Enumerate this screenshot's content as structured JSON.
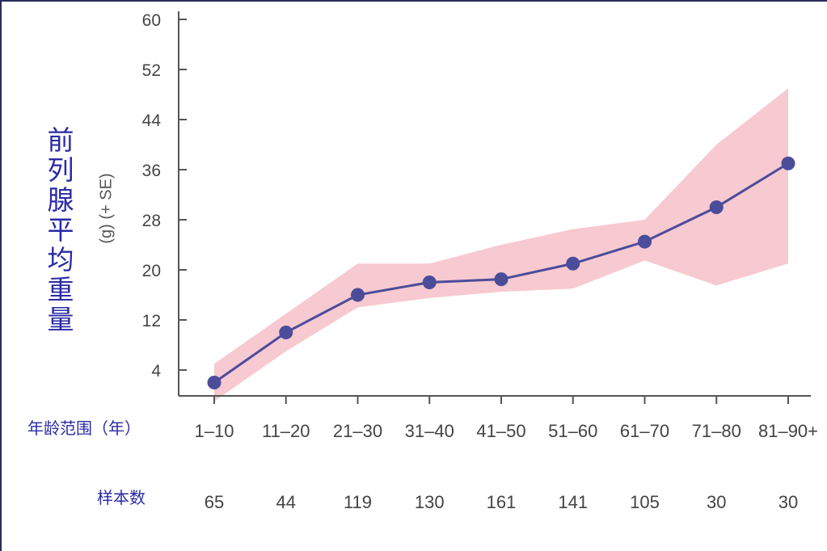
{
  "chart_data": {
    "type": "line",
    "ylabel": "前列腺平均重量",
    "ylabel_unit": "(g) (+ SE)",
    "xlabel": "年龄范围（年）",
    "sample_label": "样本数",
    "categories": [
      "1–10",
      "11–20",
      "21–30",
      "31–40",
      "41–50",
      "51–60",
      "61–70",
      "71–80",
      "81–90+"
    ],
    "sample_sizes": [
      "65",
      "44",
      "119",
      "130",
      "161",
      "141",
      "105",
      "30",
      "30"
    ],
    "series": [
      {
        "values": [
          2,
          10,
          16,
          18,
          18.5,
          21,
          24.5,
          30,
          37
        ]
      }
    ],
    "error_band": {
      "upper": [
        5,
        13,
        21,
        21,
        24,
        26.5,
        28,
        40,
        49
      ],
      "lower": [
        -1,
        7,
        14,
        15.5,
        16.5,
        17,
        21.5,
        17.5,
        21
      ]
    },
    "yticks": [
      4,
      12,
      20,
      28,
      36,
      44,
      52,
      60
    ],
    "ylim": [
      0,
      60
    ],
    "grid": false,
    "colors": {
      "line": "#4b4c9a",
      "marker": "#4b4c9a",
      "band": "#f7c9d0",
      "axis": "#555555",
      "cn_label": "#2a2aa6"
    }
  }
}
